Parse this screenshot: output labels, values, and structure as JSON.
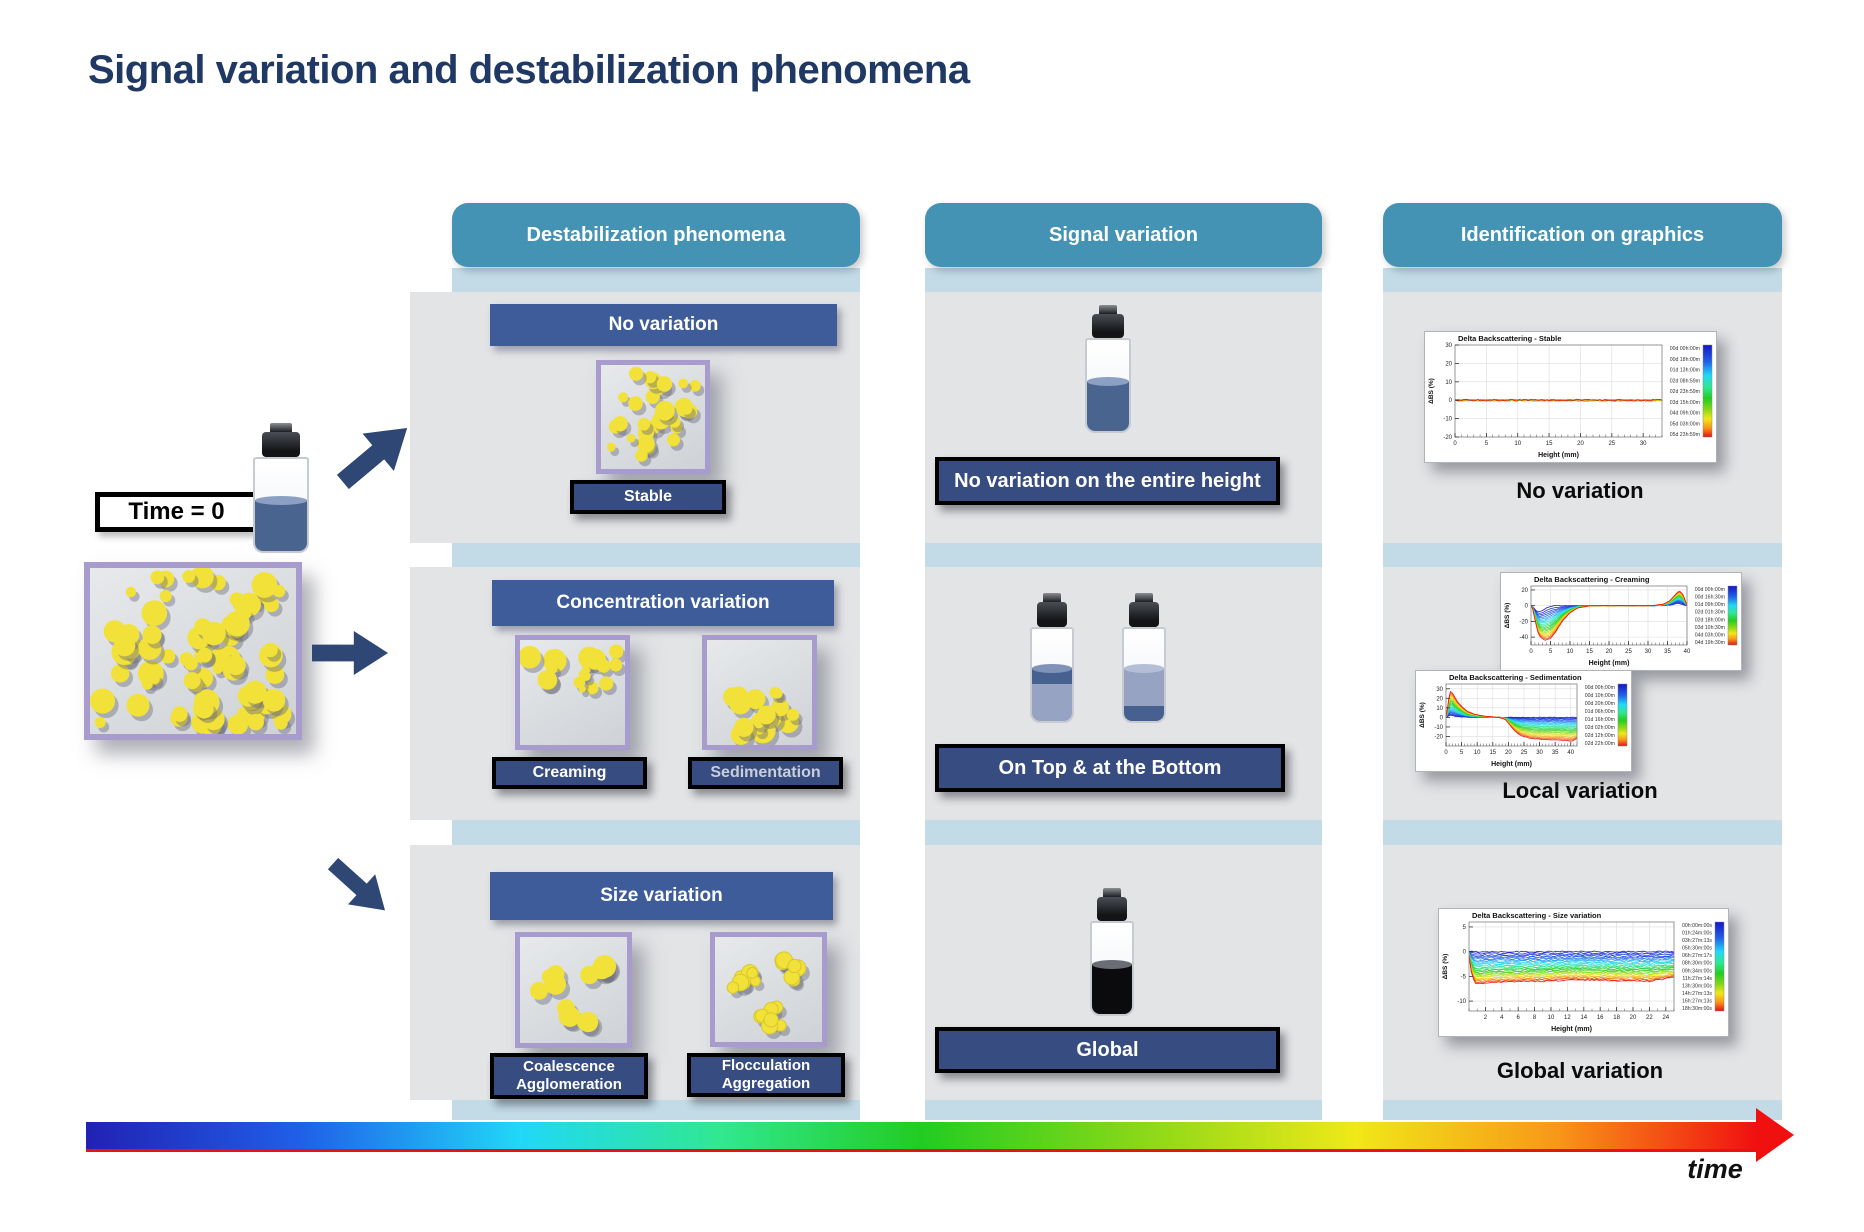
{
  "slide_title": "Signal variation and destabilization phenomena",
  "columns": [
    {
      "label": "Destabilization phenomena"
    },
    {
      "label": "Signal variation"
    },
    {
      "label": "Identification on graphics"
    }
  ],
  "left_panel": {
    "time_zero_label": "Time = 0"
  },
  "rows": [
    {
      "banner": "No variation",
      "items": [
        {
          "line1": "Stable"
        }
      ],
      "signal_label": "No variation on the entire height",
      "caption": "No variation"
    },
    {
      "banner": "Concentration variation",
      "items": [
        {
          "line1": "Creaming"
        },
        {
          "line1": "Sedimentation"
        }
      ],
      "signal_label": "On Top  & at the Bottom",
      "caption": "Local variation"
    },
    {
      "banner": "Size variation",
      "items": [
        {
          "line1": "Coalescence",
          "line2": "Agglomeration"
        },
        {
          "line1": "Flocculation",
          "line2": "Aggregation"
        }
      ],
      "signal_label": "Global",
      "caption": "Global variation"
    }
  ],
  "time_axis_label": "time",
  "colors": {
    "header_teal": "#4593B4",
    "strip_blue": "#C2DBE7",
    "panel_gray": "#E2E4E6",
    "banner_navy": "#3D5C99",
    "label_navy": "#374D81",
    "title_navy": "#1F3864",
    "arrow_navy": "#2F4775",
    "purple_border": "#A89CCE",
    "particle_yellow": "#F1E138",
    "liquid_dark": "#46618F",
    "liquid_light": "#96A3C2",
    "liquid_black": "#0B0B0D"
  },
  "bottles": {
    "uniform": {
      "fill": 0.55,
      "layers": [
        {
          "color": "#49648F",
          "frac": 1
        }
      ],
      "surface": "#8CA0C4"
    },
    "creaming": {
      "fill": 0.58,
      "layers": [
        {
          "color": "#46618F",
          "frac": 0.3
        },
        {
          "color": "#96A3C2",
          "frac": 0.7
        }
      ],
      "surface": "#7F93B8"
    },
    "sedimentation": {
      "fill": 0.58,
      "layers": [
        {
          "color": "#96A3C2",
          "frac": 0.72
        },
        {
          "color": "#46618F",
          "frac": 0.28
        }
      ],
      "surface": "#B4BED6"
    },
    "global": {
      "fill": 0.55,
      "layers": [
        {
          "color": "#0B0B0D",
          "frac": 1
        }
      ],
      "surface": "#6A6E74"
    }
  },
  "particles": {
    "initial": {
      "count": 80,
      "rmin": 5,
      "rmax": 13,
      "region": "all",
      "seed": 7
    },
    "stable": {
      "count": 30,
      "rmin": 4,
      "rmax": 10,
      "region": "all",
      "seed": 11
    },
    "creaming": {
      "count": 17,
      "rmin": 4,
      "rmax": 11,
      "region": "top",
      "seed": 5
    },
    "sedimentation": {
      "count": 17,
      "rmin": 4,
      "rmax": 11,
      "region": "bottom",
      "seed": 9
    },
    "coalescence": {
      "type": "blobs",
      "clusters": 3,
      "seed": 3
    },
    "flocculation": {
      "type": "clusters",
      "clusters": 3,
      "seed": 14
    }
  },
  "chart_data": [
    {
      "type": "line",
      "title": "Delta Backscattering - Stable",
      "xlabel": "Height (mm)",
      "ylabel": "ΔBS (%)",
      "xlim": [
        0,
        33
      ],
      "ylim": [
        -20,
        30
      ],
      "xticks": [
        0,
        5,
        10,
        15,
        20,
        25,
        30
      ],
      "yticks": [
        30,
        20,
        10,
        0,
        -10,
        -20
      ],
      "grid": true,
      "legend_position": "right-colorbar",
      "n_curves": 12,
      "noise": 0.5,
      "gamma": 1,
      "seed": 21,
      "envelope_first": [
        [
          0,
          0
        ],
        [
          33,
          0
        ]
      ],
      "envelope_last": [
        [
          0,
          0
        ],
        [
          33,
          0
        ]
      ],
      "legend": [
        "00d 00h:00m",
        "00d 18h:00m",
        "01d 13h:00m",
        "02d 08h:59m",
        "02d 23h:59m",
        "03d 15h:00m",
        "04d 09h:00m",
        "05d 03h:00m",
        "05d 23h:59m"
      ]
    },
    {
      "type": "line",
      "title": "Delta Backscattering - Creaming",
      "xlabel": "Height (mm)",
      "ylabel": "ΔBS (%)",
      "xlim": [
        0,
        40
      ],
      "ylim": [
        -50,
        25
      ],
      "xticks": [
        0,
        5,
        10,
        15,
        20,
        25,
        30,
        35,
        40
      ],
      "yticks": [
        20,
        0,
        -20,
        -40
      ],
      "grid": true,
      "legend_position": "right-colorbar",
      "n_curves": 22,
      "noise": 0.25,
      "gamma": 0.85,
      "seed": 33,
      "envelope_first": [
        [
          0,
          0
        ],
        [
          0.6,
          -2
        ],
        [
          1.2,
          -6
        ],
        [
          2,
          -8
        ],
        [
          3,
          -6
        ],
        [
          4,
          -3
        ],
        [
          5,
          -1
        ],
        [
          6,
          0
        ],
        [
          34,
          0
        ],
        [
          36,
          1
        ],
        [
          37.5,
          3
        ],
        [
          38.5,
          2
        ],
        [
          39.5,
          0.5
        ],
        [
          40,
          0
        ]
      ],
      "envelope_last": [
        [
          0,
          0
        ],
        [
          0.4,
          -3
        ],
        [
          1,
          -18
        ],
        [
          2,
          -38
        ],
        [
          3.5,
          -44
        ],
        [
          5,
          -42
        ],
        [
          6.5,
          -32
        ],
        [
          8,
          -20
        ],
        [
          10,
          -9
        ],
        [
          12,
          -3
        ],
        [
          14,
          -1
        ],
        [
          16,
          0
        ],
        [
          30,
          0
        ],
        [
          32,
          0.5
        ],
        [
          34,
          2
        ],
        [
          35.5,
          6
        ],
        [
          37,
          14
        ],
        [
          38,
          19
        ],
        [
          39,
          14
        ],
        [
          39.7,
          4
        ],
        [
          40,
          0
        ]
      ],
      "legend": [
        "00d 00h:00m",
        "00d 16h:30m",
        "01d 09h:00m",
        "02d 01h:30m",
        "02d 18h:00m",
        "03d 10h:30m",
        "04d 03h:00m",
        "04d 19h:30m"
      ]
    },
    {
      "type": "line",
      "title": "Delta Backscattering - Sedimentation",
      "xlabel": "Height (mm)",
      "ylabel": "ΔBS (%)",
      "xlim": [
        0,
        42
      ],
      "ylim": [
        -30,
        35
      ],
      "xticks": [
        0,
        5,
        10,
        15,
        20,
        25,
        30,
        35,
        40
      ],
      "yticks": [
        30,
        20,
        10,
        0,
        -10,
        -20
      ],
      "grid": true,
      "legend_position": "right-colorbar",
      "n_curves": 22,
      "noise": 0.2,
      "gamma": 1.1,
      "seed": 44,
      "envelope_first": [
        [
          0,
          0
        ],
        [
          0.5,
          1
        ],
        [
          1,
          2
        ],
        [
          2,
          2
        ],
        [
          3,
          1
        ],
        [
          5,
          0.5
        ],
        [
          8,
          0
        ],
        [
          42,
          0
        ]
      ],
      "envelope_last": [
        [
          0,
          0
        ],
        [
          0.4,
          8
        ],
        [
          0.9,
          20
        ],
        [
          1.4,
          27
        ],
        [
          2,
          26
        ],
        [
          3,
          20
        ],
        [
          4,
          15
        ],
        [
          5.5,
          10
        ],
        [
          7,
          6
        ],
        [
          9,
          3.5
        ],
        [
          11,
          2
        ],
        [
          13,
          1
        ],
        [
          15,
          0.5
        ],
        [
          17,
          0
        ],
        [
          19,
          -2
        ],
        [
          20.5,
          -8
        ],
        [
          22,
          -14
        ],
        [
          24,
          -19
        ],
        [
          27,
          -22
        ],
        [
          30,
          -23
        ],
        [
          34,
          -23.5
        ],
        [
          38,
          -24
        ],
        [
          40.5,
          -25
        ],
        [
          42,
          -22
        ]
      ],
      "legend": [
        "00d 00h:00m",
        "00d 10h:00m",
        "00d 20h:00m",
        "01d 06h:00m",
        "01d 16h:00m",
        "02d 02h:00m",
        "02d 12h:00m",
        "02d 22h:00m"
      ]
    },
    {
      "type": "line",
      "title": "Delta Backscattering - Size variation",
      "xlabel": "Height (mm)",
      "ylabel": "ΔBS (%)",
      "xlim": [
        0,
        25
      ],
      "ylim": [
        -12,
        6
      ],
      "xticks": [
        2,
        4,
        6,
        8,
        10,
        12,
        14,
        16,
        18,
        20,
        22,
        24
      ],
      "yticks": [
        5,
        0,
        -5,
        -10
      ],
      "grid": true,
      "legend_position": "right-colorbar",
      "n_curves": 26,
      "noise": 0.15,
      "gamma": 0.9,
      "seed": 55,
      "envelope_first": [
        [
          0,
          0
        ],
        [
          25,
          0
        ]
      ],
      "envelope_last": [
        [
          0,
          -0.5
        ],
        [
          0.3,
          -4.5
        ],
        [
          0.7,
          -6.3
        ],
        [
          1.2,
          -6.5
        ],
        [
          2,
          -6.3
        ],
        [
          4,
          -6.2
        ],
        [
          7,
          -6
        ],
        [
          10,
          -5.9
        ],
        [
          13,
          -5.7
        ],
        [
          16,
          -5.8
        ],
        [
          19,
          -5.9
        ],
        [
          22,
          -6
        ],
        [
          23.5,
          -5.6
        ],
        [
          25,
          -5.2
        ]
      ],
      "legend": [
        "00h:00m:00s",
        "01h:24m:00s",
        "03h:27m:13s",
        "05h:30m:00s",
        "06h:27m:17s",
        "08h:30m:00s",
        "09h:34m:00s",
        "11h:27m:14s",
        "13h:30m:00s",
        "14h:27m:13s",
        "16h:27m:13s",
        "18h:30m:00s"
      ]
    }
  ]
}
